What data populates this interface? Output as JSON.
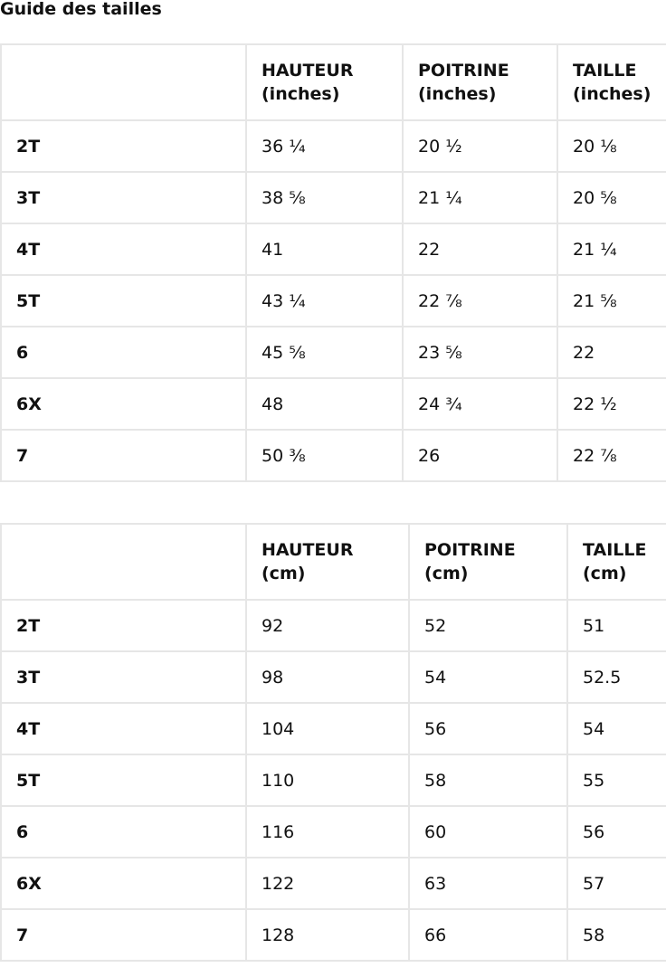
{
  "title": "Guide des tailles",
  "inches": {
    "headers": [
      "",
      "HAUTEUR\n(inches)",
      "POITRINE\n(inches)",
      "TAILLE\n(inches)"
    ],
    "rows": [
      [
        "2T",
        "36 ¼",
        "20 ½",
        "20 ⅛"
      ],
      [
        "3T",
        "38 ⅝",
        "21 ¼",
        "20 ⅝"
      ],
      [
        "4T",
        "41",
        "22",
        "21 ¼"
      ],
      [
        "5T",
        "43 ¼",
        "22 ⅞",
        "21 ⅝"
      ],
      [
        "6",
        "45 ⅝",
        "23 ⅝",
        "22"
      ],
      [
        "6X",
        "48",
        "24 ¾",
        "22 ½"
      ],
      [
        "7",
        "50 ⅜",
        "26",
        "22 ⅞"
      ]
    ]
  },
  "cm": {
    "headers": [
      "",
      "HAUTEUR\n(cm)",
      "POITRINE\n(cm)",
      "TAILLE\n(cm)"
    ],
    "rows": [
      [
        "2T",
        "92",
        "52",
        "51"
      ],
      [
        "3T",
        "98",
        "54",
        "52.5"
      ],
      [
        "4T",
        "104",
        "56",
        "54"
      ],
      [
        "5T",
        "110",
        "58",
        "55"
      ],
      [
        "6",
        "116",
        "60",
        "56"
      ],
      [
        "6X",
        "122",
        "63",
        "57"
      ],
      [
        "7",
        "128",
        "66",
        "58"
      ]
    ]
  }
}
